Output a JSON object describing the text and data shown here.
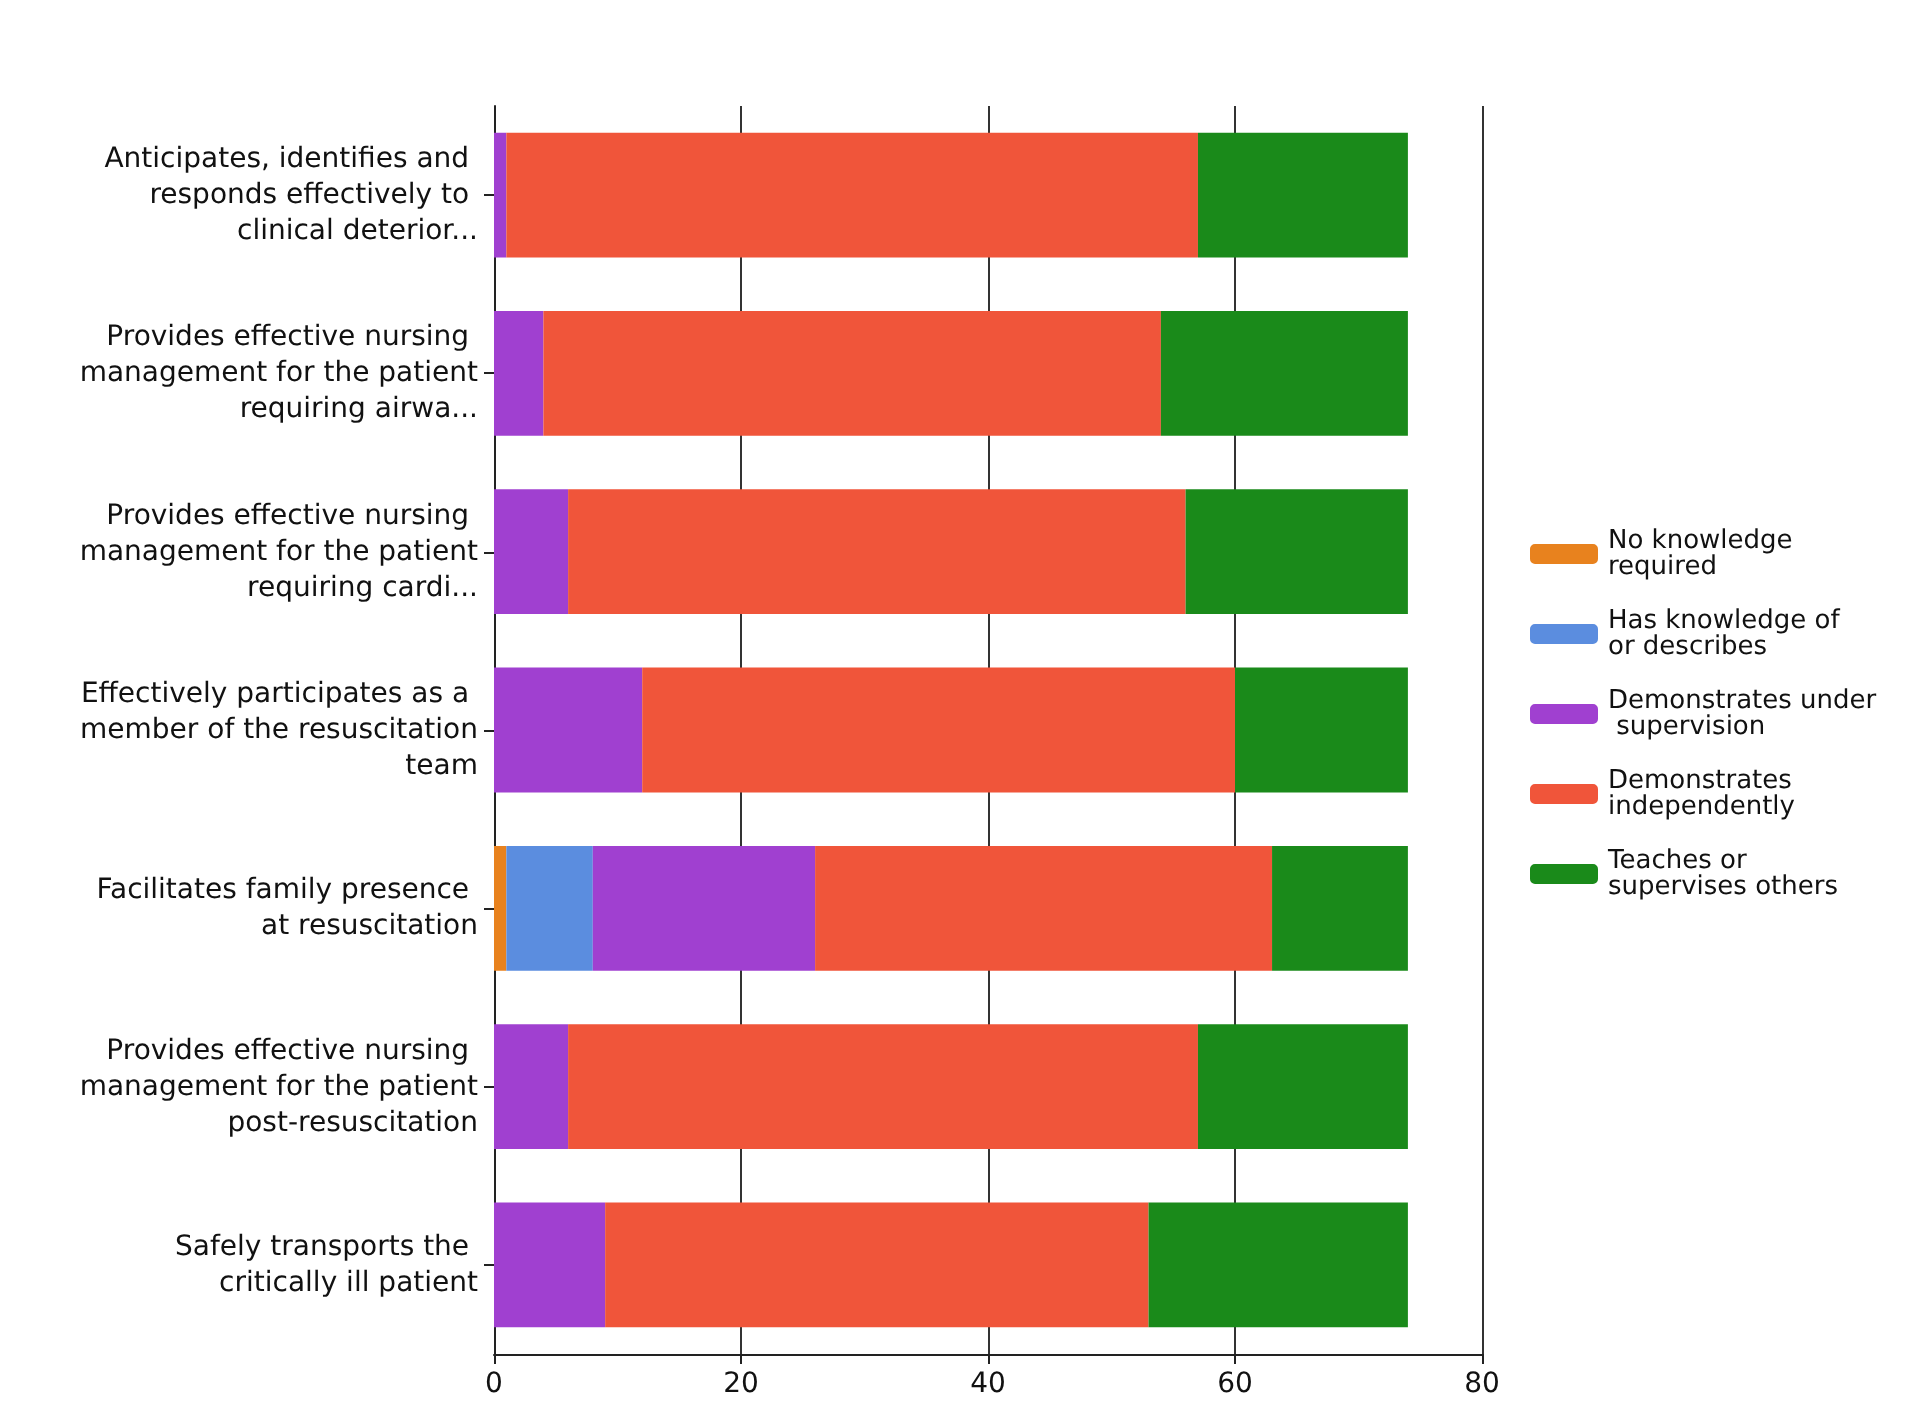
{
  "chart_data": {
    "type": "bar",
    "orientation": "horizontal",
    "stacked": true,
    "categories": [
      "Anticipates, identifies and responds effectively to clinical deterior...",
      "Provides effective nursing management for the patient requiring airwa...",
      "Provides effective nursing management for the patient requiring cardi...",
      "Effectively participates as a member of the resuscitation team",
      "Facilitates family presence at resuscitation",
      "Provides effective nursing management for the patient post-resuscitation",
      "Safely transports the critically ill patient"
    ],
    "series": [
      {
        "name": "No knowledge required",
        "color": "#e8821e",
        "values": [
          0,
          0,
          0,
          0,
          1,
          0,
          0
        ]
      },
      {
        "name": "Has knowledge of or describes",
        "color": "#5b8ddf",
        "values": [
          0,
          0,
          0,
          0,
          7,
          0,
          0
        ]
      },
      {
        "name": "Demonstrates under supervision",
        "color": "#a040d0",
        "values": [
          1,
          4,
          6,
          12,
          18,
          6,
          9
        ]
      },
      {
        "name": "Demonstrates independently",
        "color": "#f0553a",
        "values": [
          56,
          50,
          50,
          48,
          37,
          51,
          44
        ]
      },
      {
        "name": "Teaches or supervises others",
        "color": "#1a8a1a",
        "values": [
          17,
          20,
          18,
          14,
          11,
          17,
          21
        ]
      }
    ],
    "xlim": [
      0,
      80
    ],
    "xticks": [
      0,
      20,
      40,
      60,
      80
    ],
    "grid": "x",
    "legend": "right"
  }
}
